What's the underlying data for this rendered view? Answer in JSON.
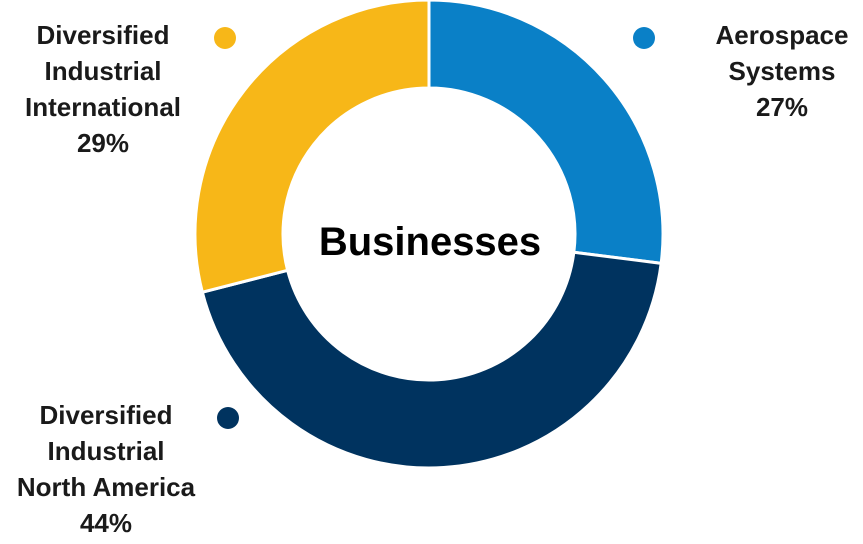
{
  "chart_data": {
    "type": "pie",
    "title": "Businesses",
    "slices": [
      {
        "label_lines": [
          "Aerospace",
          "Systems"
        ],
        "value": 27,
        "value_label": "27%",
        "color": "#0a80c7"
      },
      {
        "label_lines": [
          "Diversified",
          "Industrial",
          "North America"
        ],
        "value": 44,
        "value_label": "44%",
        "color": "#00335f"
      },
      {
        "label_lines": [
          "Diversified",
          "Industrial",
          "International"
        ],
        "value": 29,
        "value_label": "29%",
        "color": "#f7b718"
      }
    ],
    "legend": "inline-labels"
  }
}
